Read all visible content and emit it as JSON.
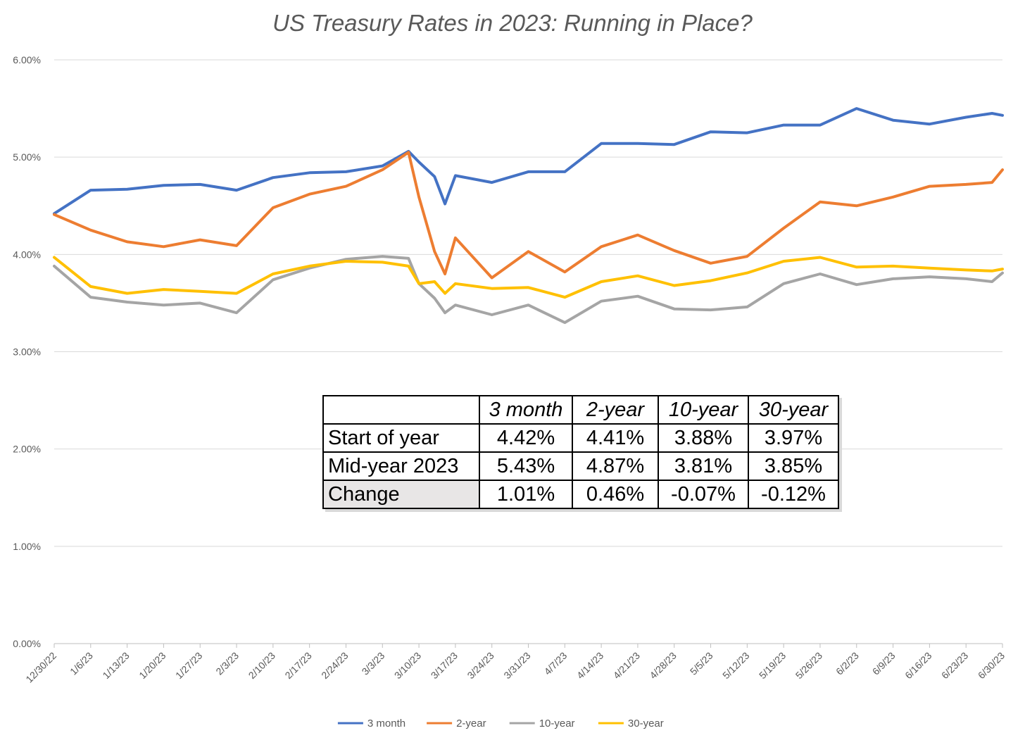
{
  "chart_data": {
    "type": "line",
    "title": "US Treasury Rates in 2023: Running in Place?",
    "ylim": [
      0,
      6
    ],
    "yticks": [
      "0.00%",
      "1.00%",
      "2.00%",
      "3.00%",
      "4.00%",
      "5.00%",
      "6.00%"
    ],
    "grid": true,
    "legend_position": "bottom",
    "x_tick_labels": [
      "12/30/22",
      "1/6/23",
      "1/13/23",
      "1/20/23",
      "1/27/23",
      "2/3/23",
      "2/10/23",
      "2/17/23",
      "2/24/23",
      "3/3/23",
      "3/10/23",
      "3/17/23",
      "3/24/23",
      "3/31/23",
      "4/7/23",
      "4/14/23",
      "4/21/23",
      "4/28/23",
      "5/5/23",
      "5/12/23",
      "5/19/23",
      "5/26/23",
      "6/2/23",
      "6/9/23",
      "6/16/23",
      "6/23/23",
      "6/30/23"
    ],
    "x": [
      "12/30/22",
      "1/6/23",
      "1/13/23",
      "1/20/23",
      "1/27/23",
      "2/3/23",
      "2/10/23",
      "2/17/23",
      "2/24/23",
      "3/3/23",
      "3/8/23",
      "3/10/23",
      "3/13/23",
      "3/15/23",
      "3/17/23",
      "3/24/23",
      "3/31/23",
      "4/7/23",
      "4/14/23",
      "4/21/23",
      "4/28/23",
      "5/5/23",
      "5/12/23",
      "5/19/23",
      "5/26/23",
      "6/2/23",
      "6/9/23",
      "6/16/23",
      "6/23/23",
      "6/28/23",
      "6/30/23"
    ],
    "series": [
      {
        "name": "3 month",
        "color": "#4472C4",
        "values": [
          4.42,
          4.66,
          4.67,
          4.71,
          4.72,
          4.66,
          4.79,
          4.84,
          4.85,
          4.91,
          5.06,
          4.95,
          4.8,
          4.52,
          4.81,
          4.74,
          4.85,
          4.85,
          5.14,
          5.14,
          5.13,
          5.26,
          5.25,
          5.33,
          5.33,
          5.5,
          5.38,
          5.34,
          5.41,
          5.45,
          5.43
        ]
      },
      {
        "name": "2-year",
        "color": "#ED7D31",
        "values": [
          4.41,
          4.25,
          4.13,
          4.08,
          4.15,
          4.09,
          4.48,
          4.62,
          4.7,
          4.87,
          5.05,
          4.59,
          4.03,
          3.8,
          4.17,
          3.76,
          4.03,
          3.82,
          4.08,
          4.2,
          4.04,
          3.91,
          3.98,
          4.27,
          4.54,
          4.5,
          4.59,
          4.7,
          4.72,
          4.74,
          4.87
        ]
      },
      {
        "name": "10-year",
        "color": "#A5A5A5",
        "values": [
          3.88,
          3.56,
          3.51,
          3.48,
          3.5,
          3.4,
          3.74,
          3.86,
          3.95,
          3.98,
          3.96,
          3.7,
          3.55,
          3.4,
          3.48,
          3.38,
          3.48,
          3.3,
          3.52,
          3.57,
          3.44,
          3.43,
          3.46,
          3.7,
          3.8,
          3.69,
          3.75,
          3.77,
          3.75,
          3.72,
          3.81
        ]
      },
      {
        "name": "30-year",
        "color": "#FFC000",
        "values": [
          3.97,
          3.67,
          3.6,
          3.64,
          3.62,
          3.6,
          3.8,
          3.88,
          3.93,
          3.92,
          3.88,
          3.7,
          3.72,
          3.6,
          3.7,
          3.65,
          3.66,
          3.56,
          3.72,
          3.78,
          3.68,
          3.73,
          3.81,
          3.93,
          3.97,
          3.87,
          3.88,
          3.86,
          3.84,
          3.83,
          3.85
        ]
      }
    ]
  },
  "summary_table": {
    "columns": [
      "",
      "3 month",
      "2-year",
      "10-year",
      "30-year"
    ],
    "rows": [
      {
        "label": "Start of year",
        "values": [
          "4.42%",
          "4.41%",
          "3.88%",
          "3.97%"
        ]
      },
      {
        "label": "Mid-year 2023",
        "values": [
          "5.43%",
          "4.87%",
          "3.81%",
          "3.85%"
        ]
      },
      {
        "label": "Change",
        "values": [
          "1.01%",
          "0.46%",
          "-0.07%",
          "-0.12%"
        ]
      }
    ]
  }
}
